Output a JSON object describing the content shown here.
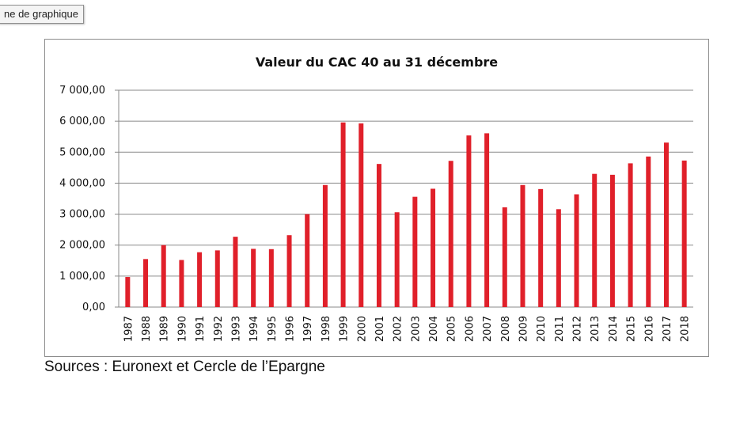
{
  "zone_tag": "ne de graphique",
  "source_note": "Sources : Euronext et Cercle de l’Epargne",
  "colors": {
    "bar": "#e0202a",
    "grid": "#8a8a8a",
    "axis": "#8a8a8a"
  },
  "chart_data": {
    "type": "bar",
    "title": "Valeur du CAC 40 au 31 décembre",
    "xlabel": "",
    "ylabel": "",
    "ylim": [
      0,
      7000
    ],
    "grid": true,
    "yticks": [
      0,
      1000,
      2000,
      3000,
      4000,
      5000,
      6000,
      7000
    ],
    "ytick_labels": [
      "0,00",
      "1 000,00",
      "2 000,00",
      "3 000,00",
      "4 000,00",
      "5 000,00",
      "6 000,00",
      "7 000,00"
    ],
    "categories": [
      "1987",
      "1988",
      "1989",
      "1990",
      "1991",
      "1992",
      "1993",
      "1994",
      "1995",
      "1996",
      "1997",
      "1998",
      "1999",
      "2000",
      "2001",
      "2002",
      "2003",
      "2004",
      "2005",
      "2006",
      "2007",
      "2008",
      "2009",
      "2010",
      "2011",
      "2012",
      "2013",
      "2014",
      "2015",
      "2016",
      "2017",
      "2018"
    ],
    "values": [
      970,
      1550,
      2000,
      1520,
      1770,
      1830,
      2270,
      1880,
      1870,
      2320,
      3000,
      3940,
      5960,
      5930,
      4620,
      3060,
      3560,
      3820,
      4720,
      5540,
      5610,
      3220,
      3940,
      3810,
      3160,
      3640,
      4300,
      4270,
      4640,
      4860,
      5310,
      4730
    ]
  }
}
